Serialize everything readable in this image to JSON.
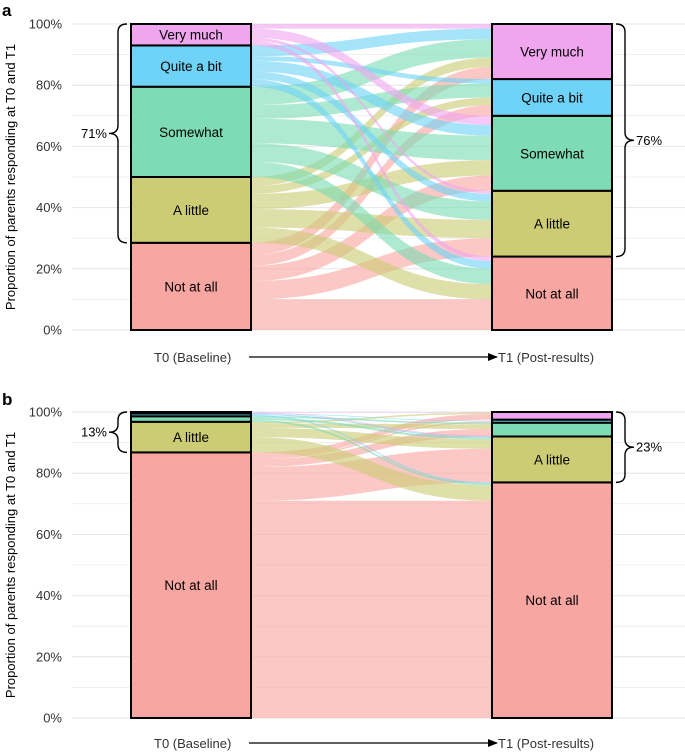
{
  "chart_data": [
    {
      "type": "alluvial",
      "panel": "a",
      "ylabel": "Proportion of parents responding at T0 and T1",
      "x_start": "T0 (Baseline)",
      "x_end": "T1 (Post-results)",
      "yticks": [
        "0%",
        "20%",
        "40%",
        "60%",
        "80%",
        "100%"
      ],
      "t0": [
        {
          "category": "Not at all",
          "value": 28.5,
          "label": "Not at all"
        },
        {
          "category": "A little",
          "value": 21.5,
          "label": "A little"
        },
        {
          "category": "Somewhat",
          "value": 29.5,
          "label": "Somewhat"
        },
        {
          "category": "Quite a bit",
          "value": 13.5,
          "label": "Quite a bit"
        },
        {
          "category": "Very much",
          "value": 7.0,
          "label": "Very much"
        }
      ],
      "t1": [
        {
          "category": "Not at all",
          "value": 24.0,
          "label": "Not at all"
        },
        {
          "category": "A little",
          "value": 21.5,
          "label": "A little"
        },
        {
          "category": "Somewhat",
          "value": 24.5,
          "label": "Somewhat"
        },
        {
          "category": "Quite a bit",
          "value": 12.0,
          "label": "Quite a bit"
        },
        {
          "category": "Very much",
          "value": 18.0,
          "label": "Very much"
        }
      ],
      "flows": [
        {
          "from": "Not at all",
          "to": "Not at all",
          "value": 10
        },
        {
          "from": "Not at all",
          "to": "A little",
          "value": 6
        },
        {
          "from": "Not at all",
          "to": "Somewhat",
          "value": 5
        },
        {
          "from": "Not at all",
          "to": "Quite a bit",
          "value": 3.5
        },
        {
          "from": "Not at all",
          "to": "Very much",
          "value": 4
        },
        {
          "from": "A little",
          "to": "Not at all",
          "value": 5
        },
        {
          "from": "A little",
          "to": "A little",
          "value": 6
        },
        {
          "from": "A little",
          "to": "Somewhat",
          "value": 5
        },
        {
          "from": "A little",
          "to": "Quite a bit",
          "value": 2.5
        },
        {
          "from": "A little",
          "to": "Very much",
          "value": 3
        },
        {
          "from": "Somewhat",
          "to": "Not at all",
          "value": 5
        },
        {
          "from": "Somewhat",
          "to": "A little",
          "value": 6
        },
        {
          "from": "Somewhat",
          "to": "Somewhat",
          "value": 8
        },
        {
          "from": "Somewhat",
          "to": "Quite a bit",
          "value": 4.5
        },
        {
          "from": "Somewhat",
          "to": "Very much",
          "value": 6
        },
        {
          "from": "Quite a bit",
          "to": "Not at all",
          "value": 2.5
        },
        {
          "from": "Quite a bit",
          "to": "A little",
          "value": 2.5
        },
        {
          "from": "Quite a bit",
          "to": "Somewhat",
          "value": 3.5
        },
        {
          "from": "Quite a bit",
          "to": "Quite a bit",
          "value": 1.5
        },
        {
          "from": "Quite a bit",
          "to": "Very much",
          "value": 3.5
        },
        {
          "from": "Very much",
          "to": "Not at all",
          "value": 1.5
        },
        {
          "from": "Very much",
          "to": "A little",
          "value": 1
        },
        {
          "from": "Very much",
          "to": "Somewhat",
          "value": 3
        },
        {
          "from": "Very much",
          "to": "Very much",
          "value": 1.5
        }
      ],
      "bracket_t0": {
        "label": "71%",
        "from": "A little",
        "to": "Very much"
      },
      "bracket_t1": {
        "label": "76%",
        "from": "A little",
        "to": "Very much"
      }
    },
    {
      "type": "alluvial",
      "panel": "b",
      "ylabel": "Proportion of parents responding at T0 and T1",
      "x_start": "T0 (Baseline)",
      "x_end": "T1 (Post-results)",
      "yticks": [
        "0%",
        "20%",
        "40%",
        "60%",
        "80%",
        "100%"
      ],
      "t0": [
        {
          "category": "Not at all",
          "value": 86.8,
          "label": "Not at all"
        },
        {
          "category": "A little",
          "value": 10.0,
          "label": "A little"
        },
        {
          "category": "Somewhat",
          "value": 1.8,
          "label": ""
        },
        {
          "category": "Quite a bit",
          "value": 0.9,
          "label": ""
        },
        {
          "category": "Very much",
          "value": 0.5,
          "label": ""
        }
      ],
      "t1": [
        {
          "category": "Not at all",
          "value": 77.0,
          "label": "Not at all"
        },
        {
          "category": "A little",
          "value": 15.0,
          "label": "A little"
        },
        {
          "category": "Somewhat",
          "value": 4.5,
          "label": ""
        },
        {
          "category": "Quite a bit",
          "value": 1.0,
          "label": ""
        },
        {
          "category": "Very much",
          "value": 2.5,
          "label": ""
        }
      ],
      "flows": [
        {
          "from": "Not at all",
          "to": "Not at all",
          "value": 71
        },
        {
          "from": "Not at all",
          "to": "A little",
          "value": 11
        },
        {
          "from": "Not at all",
          "to": "Somewhat",
          "value": 2.5
        },
        {
          "from": "Not at all",
          "to": "Quite a bit",
          "value": 0.5
        },
        {
          "from": "Not at all",
          "to": "Very much",
          "value": 1.8
        },
        {
          "from": "A little",
          "to": "Not at all",
          "value": 5
        },
        {
          "from": "A little",
          "to": "A little",
          "value": 3
        },
        {
          "from": "A little",
          "to": "Somewhat",
          "value": 1.5
        },
        {
          "from": "A little",
          "to": "Very much",
          "value": 0.5
        },
        {
          "from": "Somewhat",
          "to": "Not at all",
          "value": 0.6
        },
        {
          "from": "Somewhat",
          "to": "A little",
          "value": 0.7
        },
        {
          "from": "Somewhat",
          "to": "Somewhat",
          "value": 0.5
        },
        {
          "from": "Quite a bit",
          "to": "Not at all",
          "value": 0.4
        },
        {
          "from": "Quite a bit",
          "to": "A little",
          "value": 0.3
        },
        {
          "from": "Quite a bit",
          "to": "Quite a bit",
          "value": 0.2
        },
        {
          "from": "Very much",
          "to": "A little",
          "value": 0.3
        },
        {
          "from": "Very much",
          "to": "Very much",
          "value": 0.2
        }
      ],
      "bracket_t0": {
        "label": "13%",
        "from": "A little",
        "to": "Very much"
      },
      "bracket_t1": {
        "label": "23%",
        "from": "A little",
        "to": "Very much"
      }
    }
  ],
  "colors": {
    "Not at all": "#f8a6a1",
    "A little": "#cccc74",
    "Somewhat": "#7ddcb4",
    "Quite a bit": "#6ed3f6",
    "Very much": "#efa6ef",
    "grid": "#e6e6e6",
    "outline": "#000000"
  }
}
